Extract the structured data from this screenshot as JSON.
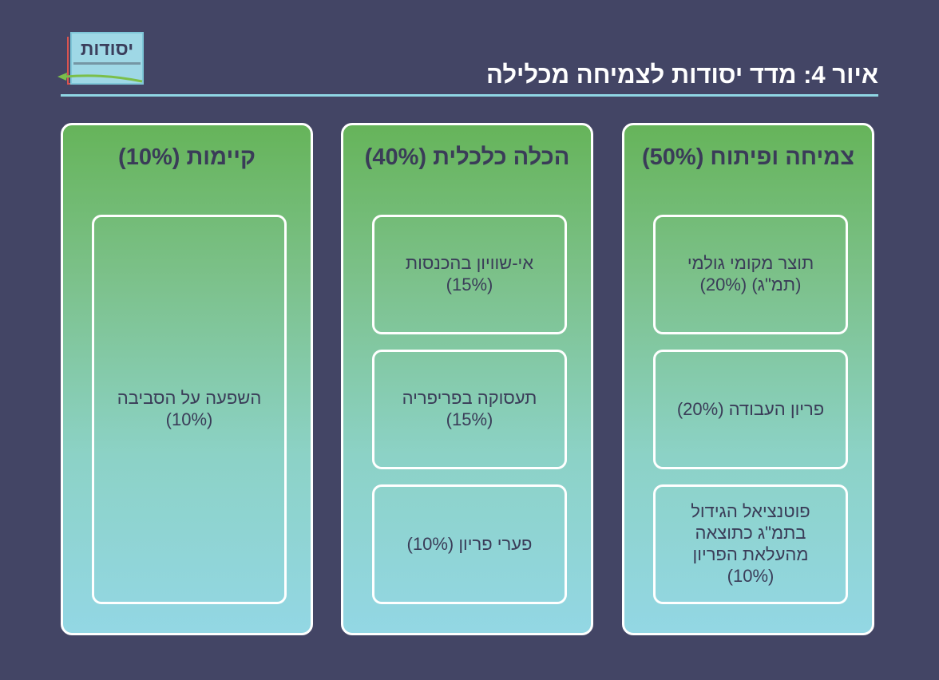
{
  "title": "איור 4: מדד יסודות לצמיחה מכלילה",
  "logo": {
    "text": "יסודות"
  },
  "columns": [
    {
      "title": "צמיחה ופיתוח (50%)",
      "boxes": [
        {
          "lines": [
            "תוצר מקומי גולמי",
            "(תמ\"ג) (20%)"
          ]
        },
        {
          "lines": [
            "פריון העבודה (20%)"
          ]
        },
        {
          "lines": [
            "פוטנציאל הגידול",
            "בתמ\"ג כתוצאה",
            "מהעלאת הפריון",
            "(10%)"
          ]
        }
      ]
    },
    {
      "title": "הכלה כלכלית (40%)",
      "boxes": [
        {
          "lines": [
            "אי-שוויון בהכנסות",
            "(15%)"
          ]
        },
        {
          "lines": [
            "תעסוקה בפריפריה",
            "(15%)"
          ]
        },
        {
          "lines": [
            "פערי פריון (10%)"
          ]
        }
      ]
    },
    {
      "title": "קיימות (10%)",
      "boxes": [
        {
          "lines": [
            "השפעה על הסביבה",
            "(10%)"
          ]
        }
      ]
    }
  ]
}
